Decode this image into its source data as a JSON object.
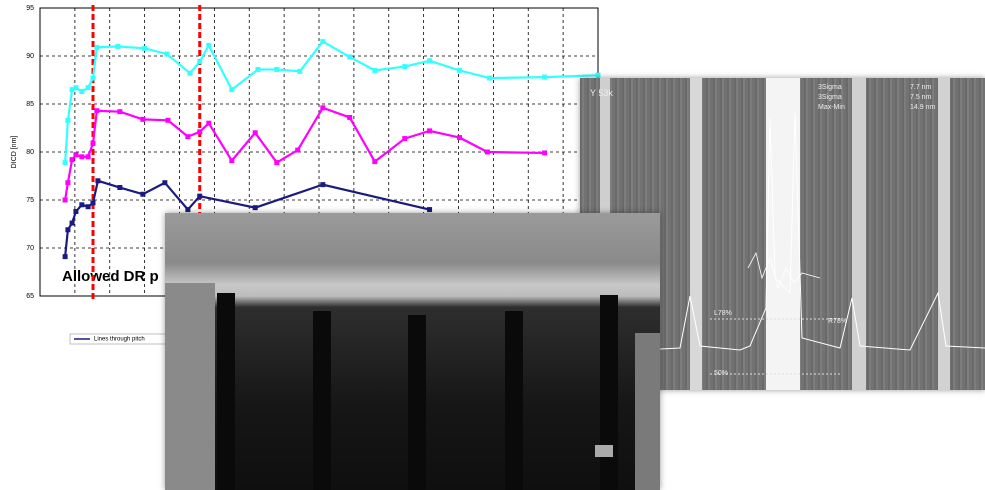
{
  "chart_data": {
    "type": "line",
    "y_label": "DICD [nm]",
    "annotation": "Allowed DR p",
    "xlim": [
      0,
      16
    ],
    "ylim": [
      65,
      95
    ],
    "yticks": [
      65,
      70,
      75,
      80,
      85,
      90,
      95
    ],
    "grid": true,
    "vlines": [
      1.52,
      4.58
    ],
    "vline_color": "#ff0000",
    "series": [
      {
        "name": "Lines through pitch",
        "color": "#1a1a80",
        "x": [
          0.72,
          0.8,
          0.92,
          1.03,
          1.2,
          1.38,
          1.52,
          1.66,
          2.29,
          2.95,
          3.58,
          4.24,
          4.58,
          6.17,
          8.11,
          11.17
        ],
        "values": [
          69.1,
          71.9,
          72.6,
          73.8,
          74.5,
          74.3,
          74.7,
          77.0,
          76.3,
          75.6,
          76.8,
          74.0,
          75.4,
          74.2,
          76.6,
          74.0
        ]
      },
      {
        "name": "",
        "color": "#ff00ff",
        "x": [
          0.72,
          0.8,
          0.92,
          1.03,
          1.2,
          1.38,
          1.52,
          1.63,
          2.29,
          2.95,
          3.67,
          4.24,
          4.58,
          4.84,
          5.5,
          6.17,
          6.79,
          7.39,
          8.11,
          8.88,
          9.6,
          10.46,
          11.17,
          12.03,
          12.83,
          14.47
        ],
        "values": [
          75.0,
          76.8,
          79.2,
          79.7,
          79.5,
          79.5,
          80.9,
          84.3,
          84.2,
          83.4,
          83.3,
          81.6,
          82.1,
          83.0,
          79.1,
          82.0,
          78.9,
          80.2,
          84.6,
          83.6,
          79.0,
          81.4,
          82.2,
          81.5,
          80.0,
          79.9
        ]
      },
      {
        "name": "",
        "color": "#33ffff",
        "x": [
          0.72,
          0.8,
          0.92,
          1.03,
          1.2,
          1.38,
          1.52,
          1.63,
          2.23,
          3.0,
          3.64,
          4.3,
          4.58,
          4.84,
          5.5,
          6.25,
          6.79,
          7.45,
          8.11,
          8.88,
          9.6,
          10.46,
          11.17,
          12.03,
          12.89,
          14.47,
          16.0
        ],
        "values": [
          78.9,
          83.3,
          86.5,
          86.7,
          86.3,
          86.7,
          87.7,
          90.9,
          91.0,
          90.8,
          90.2,
          88.2,
          89.4,
          91.1,
          86.5,
          88.6,
          88.6,
          88.4,
          91.5,
          89.9,
          88.5,
          88.9,
          89.5,
          88.5,
          87.7,
          87.8,
          88.0
        ]
      }
    ]
  },
  "sem_labels": {
    "mag": "Y 53k",
    "rows": [
      "3Sigma",
      "3Sigma",
      "Max-Min"
    ],
    "values": [
      "7.7 nm",
      "7.5 nm",
      "14.9 nm"
    ],
    "left": "L78%",
    "right": "R78%",
    "base": "50%"
  }
}
